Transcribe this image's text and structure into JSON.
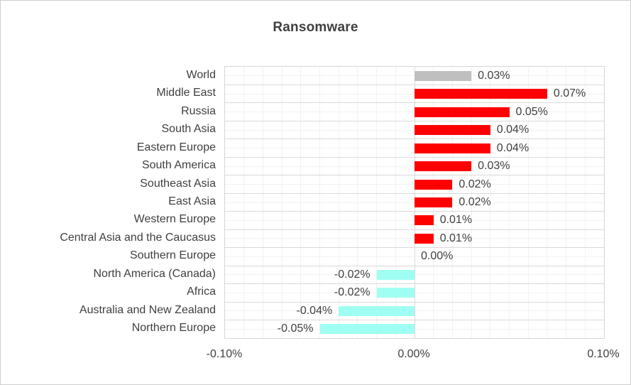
{
  "chart_data": {
    "type": "bar",
    "orientation": "horizontal",
    "title": "Ransomware",
    "categories": [
      "World",
      "Middle East",
      "Russia",
      "South Asia",
      "Eastern Europe",
      "South America",
      "Southeast Asia",
      "East Asia",
      "Western Europe",
      "Central Asia and the Caucasus",
      "Southern Europe",
      "North America (Canada)",
      "Africa",
      "Australia and New Zealand",
      "Northern Europe"
    ],
    "values": [
      0.03,
      0.07,
      0.05,
      0.04,
      0.04,
      0.03,
      0.02,
      0.02,
      0.01,
      0.01,
      0.0,
      -0.02,
      -0.02,
      -0.04,
      -0.05
    ],
    "data_labels": [
      "0.03%",
      "0.07%",
      "0.05%",
      "0.04%",
      "0.04%",
      "0.03%",
      "0.02%",
      "0.02%",
      "0.01%",
      "0.01%",
      "0.00%",
      "-0.02%",
      "-0.02%",
      "-0.04%",
      "-0.05%"
    ],
    "bar_colors": [
      "#BFBFBF",
      "#FF0000",
      "#FF0000",
      "#FF0000",
      "#FF0000",
      "#FF0000",
      "#FF0000",
      "#FF0000",
      "#FF0000",
      "#FF0000",
      "#FF0000",
      "#9EFFF2",
      "#9EFFF2",
      "#9EFFF2",
      "#9EFFF2"
    ],
    "xlabel": "",
    "ylabel": "",
    "xlim": [
      -0.1,
      0.1
    ],
    "x_ticks": [
      {
        "value": -0.1,
        "label": "-0.10%"
      },
      {
        "value": 0.0,
        "label": "0.00%"
      },
      {
        "value": 0.1,
        "label": "0.10%"
      }
    ],
    "x_minor_unit": 0.01,
    "grid": "major-and-minor",
    "legend": "none",
    "colors": {
      "world_bar": "#BFBFBF",
      "positive_bar": "#FF0000",
      "negative_bar": "#9EFFF2",
      "gridline_major": "#D9D9D9",
      "gridline_minor": "#F2F2F2",
      "text": "#3F3F3F",
      "background": "#FFFFFF"
    }
  }
}
